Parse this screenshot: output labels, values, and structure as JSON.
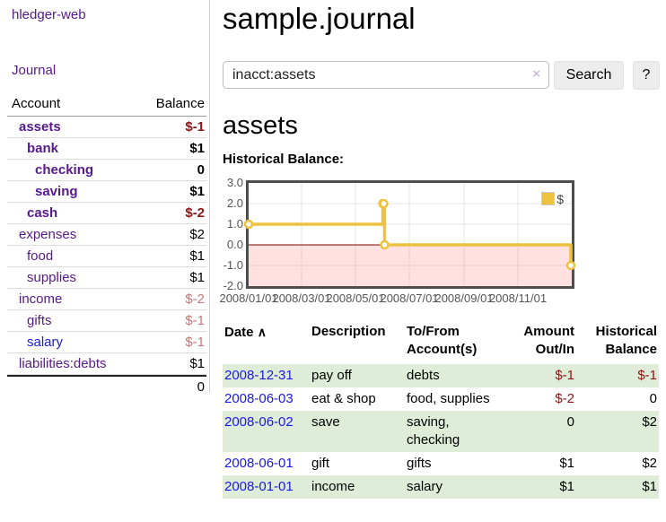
{
  "app": {
    "name": "hledger-web"
  },
  "colors": {
    "link_purple": "#551a8b",
    "link_blue": "#1919e6",
    "negative_strong": "#8b1414",
    "negative_soft": "#c47979",
    "row_stripe_green": "#deecd8",
    "series_gold": "#edc240",
    "plot_border": "#4d4d4d",
    "negative_region_pink": "#f9dada",
    "zero_line_maroon": "#7f0000"
  },
  "sidebar": {
    "journal_link": "Journal",
    "accounts": {
      "headers": [
        "Account",
        "Balance"
      ],
      "rows": [
        {
          "account": "assets",
          "balance": "$-1",
          "indent": 1,
          "bold": true
        },
        {
          "account": "bank",
          "balance": "$1",
          "indent": 2,
          "bold": true
        },
        {
          "account": "checking",
          "balance": "0",
          "indent": 3,
          "bold": true
        },
        {
          "account": "saving",
          "balance": "$1",
          "indent": 3,
          "bold": true
        },
        {
          "account": "cash",
          "balance": "$-2",
          "indent": 2,
          "bold": true
        },
        {
          "account": "expenses",
          "balance": "$2",
          "indent": 1,
          "bold": false
        },
        {
          "account": "food",
          "balance": "$1",
          "indent": 2,
          "bold": false
        },
        {
          "account": "supplies",
          "balance": "$1",
          "indent": 2,
          "bold": false
        },
        {
          "account": "income",
          "balance": "$-2",
          "indent": 1,
          "bold": false
        },
        {
          "account": "gifts",
          "balance": "$-1",
          "indent": 2,
          "bold": false
        },
        {
          "account": "salary",
          "balance": "$-1",
          "indent": 2,
          "bold": false,
          "unvisited": true
        },
        {
          "account": "liabilities:debts",
          "balance": "$1",
          "indent": 1,
          "bold": false
        }
      ],
      "total": "0"
    }
  },
  "main": {
    "title": "sample.journal",
    "search": {
      "value": "inacct:assets",
      "clear_icon": "×",
      "button_label": "Search",
      "help_label": "?"
    },
    "account_heading": "assets",
    "register": {
      "headers": [
        "Date",
        "Description",
        "To/From Account(s)",
        "Amount Out/In",
        "Historical Balance"
      ],
      "sort_icon": "∧",
      "rows": [
        {
          "date": "2008-12-31",
          "description": "pay off",
          "accounts": "debts",
          "amount": "$-1",
          "balance": "$-1"
        },
        {
          "date": "2008-06-03",
          "description": "eat & shop",
          "accounts": "food, supplies",
          "amount": "$-2",
          "balance": "0"
        },
        {
          "date": "2008-06-02",
          "description": "save",
          "accounts": "saving, checking",
          "amount": "0",
          "balance": "$2"
        },
        {
          "date": "2008-06-01",
          "description": "gift",
          "accounts": "gifts",
          "amount": "$1",
          "balance": "$2"
        },
        {
          "date": "2008-01-01",
          "description": "income",
          "accounts": "salary",
          "amount": "$1",
          "balance": "$1"
        }
      ]
    }
  },
  "chart_data": {
    "type": "line",
    "title": "Historical Balance:",
    "step": true,
    "series": [
      {
        "name": "$",
        "color": "#edc240",
        "points": [
          [
            "2008-01-01",
            1
          ],
          [
            "2008-06-01",
            2
          ],
          [
            "2008-06-02",
            2
          ],
          [
            "2008-06-03",
            0
          ],
          [
            "2008-12-31",
            -1
          ]
        ]
      }
    ],
    "x_range": [
      "2008-01-01",
      "2009-01-01"
    ],
    "x_ticks": [
      "2008/01/01",
      "2008/03/01",
      "2008/05/01",
      "2008/07/01",
      "2008/09/01",
      "2008/11/01"
    ],
    "y_ticks": [
      "3.0",
      "2.0",
      "1.0",
      "0.0",
      "-1.0",
      "-2.0"
    ],
    "ylim": [
      -2,
      3
    ],
    "grid": true,
    "legend_position": "top-right",
    "negative_region_color": "#f9dada",
    "zero_line_color": "#7f0000"
  }
}
